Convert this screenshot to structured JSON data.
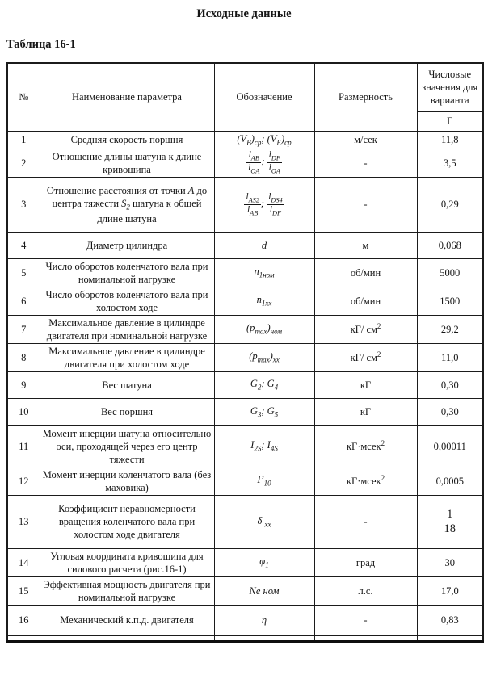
{
  "doc": {
    "title": "Исходные данные",
    "table_label": "Таблица 16-1"
  },
  "colors": {
    "text": "#161616",
    "border": "#1b1b1b",
    "background": "#ffffff"
  },
  "table": {
    "headers": {
      "num": "№",
      "name": "Наименование параметра",
      "symbol": "Обозначение",
      "unit": "Размерность",
      "values_group": "Числовые значения для варианта",
      "variant": "Г"
    },
    "rows": [
      {
        "num": "1",
        "name": "Средняя скорость поршня",
        "symbol": "(V<sub>B</sub>)<sub>cp</sub>; (V<sub>F</sub>)<sub>cp</sub>",
        "unit": "м/сек",
        "value": "11,8"
      },
      {
        "num": "2",
        "name": "Отношение длины шатуна к длине кривошипа",
        "symbol": "<span class=fr><span class=t>l<sub>AB</sub></span><span class=b>l<sub>OA</sub></span></span>; <span class=fr><span class=t>l<sub>DF</sub></span><span class=b>l<sub>OA</sub></span></span>",
        "unit": "-",
        "value": "3,5"
      },
      {
        "num": "3",
        "name": "Отношение расстояния от точки <i>A</i> до центра тяжести <i>S<sub>2</sub></i> шатуна к общей длине шатуна",
        "symbol": "<span class=fr><span class=t>l<sub>AS2</sub></span><span class=b>l<sub>AB</sub></span></span>; <span class=fr><span class=t>l<sub>DS4</sub></span><span class=b>l<sub>DF</sub></span></span>",
        "unit": "-",
        "value": "0,29"
      },
      {
        "num": "4",
        "name": "Диаметр цилиндра",
        "symbol": "d",
        "unit": "м",
        "value": "0,068"
      },
      {
        "num": "5",
        "name": "Число оборотов коленчатого вала при номинальной нагрузке",
        "symbol": "n<sub>1ном</sub>",
        "unit": "об/мин",
        "value": "5000"
      },
      {
        "num": "6",
        "name": "Число оборотов коленчатого вала при холостом ходе",
        "symbol": "n<sub>1хх</sub>",
        "unit": "об/мин",
        "value": "1500"
      },
      {
        "num": "7",
        "name": "Максимальное давление в цилиндре двигателя при номинальной нагрузке",
        "symbol": "(p<sub>max</sub>)<sub>ном</sub>",
        "unit": "кГ/ см<sup>2</sup>",
        "value": "29,2"
      },
      {
        "num": "8",
        "name": "Максимальное давление в цилиндре двигателя при холостом ходе",
        "symbol": "(p<sub>max</sub>)<sub>хх</sub>",
        "unit": "кГ/ см<sup>2</sup>",
        "value": "11,0"
      },
      {
        "num": "9",
        "name": "Вес шатуна",
        "symbol": "G<sub>2</sub>; G<sub>4</sub>",
        "unit": "кГ",
        "value": "0,30"
      },
      {
        "num": "10",
        "name": "Вес поршня",
        "symbol": "G<sub>3</sub>; G<sub>5</sub>",
        "unit": "кГ",
        "value": "0,30"
      },
      {
        "num": "11",
        "name": "Момент инерции шатуна относительно оси, проходящей через его центр тяжести",
        "symbol": "I<sub>2S</sub>; I<sub>4S</sub>",
        "unit": "кГ·мсек<sup>2</sup>",
        "value": "0,00011"
      },
      {
        "num": "12",
        "name": "Момент инерции коленчатого вала (без маховика)",
        "symbol": "I’<sub>10</sub>",
        "unit": "кГ·мсек<sup>2</sup>",
        "value": "0,0005"
      },
      {
        "num": "13",
        "name": "Коэффициент неравномерности вращения коленчатого вала при холостом ходе двигателя",
        "symbol": "δ <sub>хх</sub>",
        "unit": "-",
        "value": "<span class=frb><span class=t>1</span><span class=b>18</span></span>"
      },
      {
        "num": "14",
        "name": "Угловая координата кривошипа для силового расчета (рис.16-1)",
        "symbol": "φ<sub>1</sub>",
        "unit": "град",
        "value": "30"
      },
      {
        "num": "15",
        "name": "Эффективная мощность двигателя при номинальной нагрузке",
        "symbol": "Nе ном",
        "unit": "л.с.",
        "value": "17,0"
      },
      {
        "num": "16",
        "name": "Механический к.п.д. двигателя",
        "symbol": "η",
        "unit": "-",
        "value": "0,83"
      }
    ]
  }
}
